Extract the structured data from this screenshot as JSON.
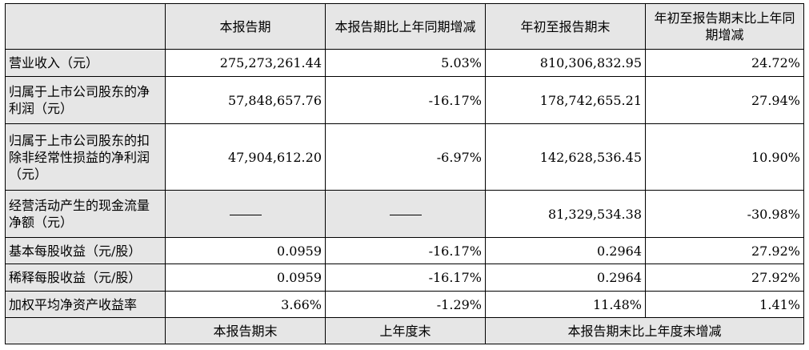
{
  "header": {
    "corner": "",
    "col1": "本报告期",
    "col2": "本报告期比上年同期增减",
    "col3": "年初至报告期末",
    "col4": "年初至报告期末比上年同期增减"
  },
  "rows": [
    {
      "label": "营业收入（元）",
      "v1": "275,273,261.44",
      "v2": "5.03%",
      "v3": "810,306,832.95",
      "v4": "24.72%"
    },
    {
      "label": "归属于上市公司股东的净利润（元）",
      "v1": "57,848,657.76",
      "v2": "-16.17%",
      "v3": "178,742,655.21",
      "v4": "27.94%"
    },
    {
      "label": "归属于上市公司股东的扣除非经常性损益的净利润（元）",
      "v1": "47,904,612.20",
      "v2": "-6.97%",
      "v3": "142,628,536.45",
      "v4": "10.90%"
    },
    {
      "label": "经营活动产生的现金流量净额（元）",
      "v1": "——",
      "v2": "——",
      "v3": "81,329,534.38",
      "v4": "-30.98%"
    },
    {
      "label": "基本每股收益（元/股）",
      "v1": "0.0959",
      "v2": "-16.17%",
      "v3": "0.2964",
      "v4": "27.92%"
    },
    {
      "label": "稀释每股收益（元/股）",
      "v1": "0.0959",
      "v2": "-16.17%",
      "v3": "0.2964",
      "v4": "27.92%"
    },
    {
      "label": "加权平均净资产收益率",
      "v1": "3.66%",
      "v2": "-1.29%",
      "v3": "11.48%",
      "v4": "1.41%"
    }
  ],
  "footer_header": {
    "col1": "本报告期末",
    "col2": "上年度末",
    "col34": "本报告期末比上年度末增减"
  },
  "colors": {
    "shade": "#e6e6e6",
    "border": "#000000"
  }
}
